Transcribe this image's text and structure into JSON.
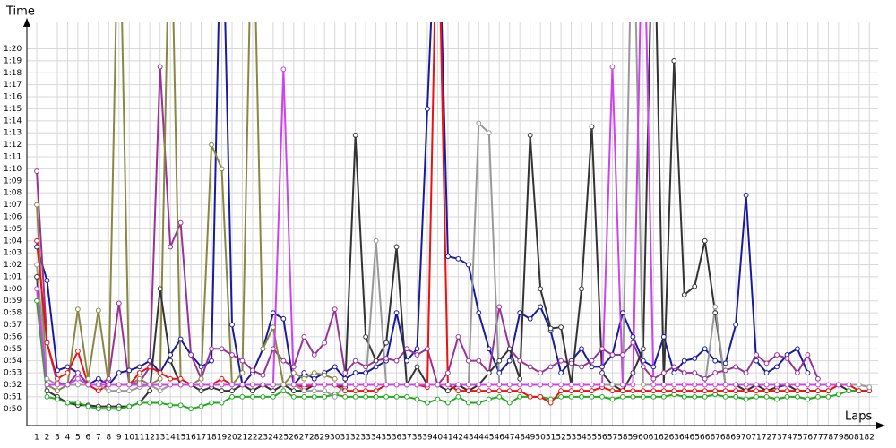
{
  "chart_data": {
    "type": "line",
    "y_label": "Time",
    "x_label": "Laps",
    "x": [
      1,
      2,
      3,
      4,
      5,
      6,
      7,
      8,
      9,
      10,
      11,
      12,
      13,
      14,
      15,
      16,
      17,
      18,
      19,
      20,
      21,
      22,
      23,
      24,
      25,
      26,
      27,
      28,
      29,
      30,
      31,
      32,
      33,
      34,
      35,
      36,
      37,
      38,
      39,
      40,
      41,
      42,
      43,
      44,
      45,
      46,
      47,
      48,
      49,
      50,
      51,
      52,
      53,
      54,
      55,
      56,
      57,
      58,
      59,
      60,
      61,
      62,
      63,
      64,
      65,
      66,
      67,
      68,
      69,
      70,
      71,
      72,
      73,
      74,
      75,
      76,
      77,
      78,
      79,
      80,
      81,
      82
    ],
    "xlim": [
      0.04,
      82.5
    ],
    "xticks": [
      1,
      2,
      3,
      4,
      5,
      6,
      7,
      8,
      9,
      10,
      11,
      12,
      13,
      14,
      15,
      16,
      17,
      18,
      19,
      20,
      21,
      22,
      23,
      24,
      25,
      26,
      27,
      28,
      29,
      30,
      31,
      32,
      33,
      34,
      35,
      36,
      37,
      38,
      39,
      40,
      41,
      42,
      43,
      44,
      45,
      46,
      47,
      48,
      49,
      50,
      51,
      52,
      53,
      54,
      55,
      56,
      57,
      58,
      59,
      60,
      61,
      62,
      63,
      64,
      65,
      66,
      67,
      68,
      69,
      70,
      71,
      72,
      73,
      74,
      75,
      76,
      77,
      78,
      79,
      80,
      81,
      82
    ],
    "ylim": [
      48.6,
      82.2
    ],
    "yticks": [
      {
        "value": 50,
        "label": "0:50"
      },
      {
        "value": 51,
        "label": "0:51"
      },
      {
        "value": 52,
        "label": "0:52"
      },
      {
        "value": 53,
        "label": "0:53"
      },
      {
        "value": 54,
        "label": "0:54"
      },
      {
        "value": 55,
        "label": "0:55"
      },
      {
        "value": 56,
        "label": "0:56"
      },
      {
        "value": 57,
        "label": "0:57"
      },
      {
        "value": 58,
        "label": "0:58"
      },
      {
        "value": 59,
        "label": "0:59"
      },
      {
        "value": 60,
        "label": "1:00"
      },
      {
        "value": 61,
        "label": "1:01"
      },
      {
        "value": 62,
        "label": "1:02"
      },
      {
        "value": 63,
        "label": "1:03"
      },
      {
        "value": 64,
        "label": "1:04"
      },
      {
        "value": 65,
        "label": "1:05"
      },
      {
        "value": 66,
        "label": "1:06"
      },
      {
        "value": 67,
        "label": "1:07"
      },
      {
        "value": 68,
        "label": "1:08"
      },
      {
        "value": 69,
        "label": "1:09"
      },
      {
        "value": 70,
        "label": "1:10"
      },
      {
        "value": 71,
        "label": "1:11"
      },
      {
        "value": 72,
        "label": "1:12"
      },
      {
        "value": 73,
        "label": "1:13"
      },
      {
        "value": 74,
        "label": "1:14"
      },
      {
        "value": 75,
        "label": "1:15"
      },
      {
        "value": 76,
        "label": "1:16"
      },
      {
        "value": 77,
        "label": "1:17"
      },
      {
        "value": 78,
        "label": "1:18"
      },
      {
        "value": 79,
        "label": "1:19"
      },
      {
        "value": 80,
        "label": "1:20"
      }
    ],
    "grid": true,
    "series": [
      {
        "color": "#1a1aa0",
        "values": [
          63.5,
          60.7,
          53.2,
          53.5,
          53,
          52,
          52.5,
          52,
          53,
          53.2,
          53.5,
          54,
          53,
          54.5,
          55.8,
          54.5,
          53.5,
          54,
          95,
          57,
          52,
          53,
          55,
          58,
          57.5,
          52,
          53,
          52.5,
          53,
          53.5,
          52.5,
          53,
          53,
          53.5,
          54,
          58,
          54,
          55,
          75,
          95,
          62.7,
          62.5,
          62,
          58,
          55,
          53,
          54,
          58,
          57.5,
          58.5,
          56.5,
          53,
          54,
          55,
          53.5,
          53.5,
          54.5,
          58,
          56,
          54,
          53.5,
          56,
          53,
          54,
          54.2,
          55,
          54,
          53.8,
          57,
          67.8,
          54,
          53,
          53.5,
          54.5,
          55,
          53,
          null,
          null,
          null,
          null,
          null,
          null
        ]
      },
      {
        "color": "#993399",
        "values": [
          69.8,
          55.5,
          52.2,
          52,
          53,
          52,
          52,
          52.5,
          58.8,
          52,
          52.2,
          53.5,
          78.5,
          63.5,
          65.5,
          54.5,
          52.5,
          55,
          55,
          54.5,
          54,
          53.2,
          52.8,
          55,
          54,
          53.5,
          56,
          54.5,
          55.5,
          58.3,
          53,
          54,
          53.5,
          54,
          54.2,
          54,
          55,
          54.5,
          55,
          52,
          53,
          56,
          54,
          54,
          53,
          58.5,
          55,
          54,
          53.5,
          53,
          53.5,
          54,
          53.8,
          53.5,
          54,
          55,
          54.5,
          54.5,
          55.5,
          53.5,
          52.5,
          53,
          53.5,
          53,
          53,
          52.5,
          53,
          53.2,
          53.5,
          53,
          54.5,
          53.8,
          54.5,
          54.2,
          53,
          54.5,
          52.5,
          null,
          null,
          null,
          null,
          null
        ]
      },
      {
        "color": "#888844",
        "values": [
          67,
          52,
          51.5,
          52,
          58.3,
          52.5,
          58.2,
          52,
          95,
          52,
          52.5,
          52,
          52.5,
          95,
          52.5,
          52,
          52.5,
          72,
          70,
          52,
          53,
          95,
          55,
          56.8,
          52,
          53,
          52.5,
          53,
          52.8,
          52.5,
          null,
          null,
          null,
          null,
          null,
          null,
          null,
          null,
          null,
          null,
          null,
          null,
          null,
          null,
          null,
          null,
          null,
          null,
          null,
          null,
          null,
          null,
          null,
          null,
          null,
          null,
          null,
          null,
          null,
          null,
          null,
          null,
          null,
          null,
          null,
          null,
          null,
          null,
          null,
          null,
          null,
          null,
          null,
          null,
          null,
          null,
          null,
          null,
          null,
          null,
          null,
          null
        ]
      },
      {
        "color": "#333333",
        "values": [
          61,
          51.5,
          51,
          50.5,
          50.3,
          50.3,
          50.2,
          50.2,
          50.2,
          50.2,
          50.5,
          51.5,
          60,
          54,
          52,
          52,
          51.5,
          51.8,
          51.5,
          51.5,
          52,
          51.5,
          52,
          51.5,
          52,
          51.5,
          51.5,
          52,
          52,
          52,
          51.8,
          72.8,
          56,
          54,
          55.5,
          63.5,
          52,
          53.5,
          52,
          52,
          51.5,
          52,
          51.5,
          52,
          53,
          54,
          55,
          52.5,
          72.8,
          60,
          56.7,
          56.8,
          52,
          60,
          73.5,
          53,
          52,
          51.5,
          53,
          55,
          95,
          52,
          79,
          59.5,
          60.2,
          64,
          58,
          52,
          52,
          51.5,
          52,
          51.5,
          51.8,
          52,
          51.5,
          51.5,
          51.5,
          51.5,
          52,
          51.5,
          51.5,
          51.5
        ]
      },
      {
        "color": "#22aa22",
        "values": [
          59,
          51,
          50.8,
          50.5,
          50.5,
          50.2,
          50,
          50,
          50,
          50.2,
          50.5,
          50.5,
          50.5,
          50.3,
          50.3,
          50,
          50.2,
          50.5,
          50.5,
          51,
          51,
          51,
          51,
          51,
          51.5,
          51,
          51,
          51,
          51,
          51.2,
          51,
          51,
          51,
          51,
          51,
          51,
          51,
          50.8,
          50.5,
          50.8,
          50.5,
          51,
          50.5,
          50.5,
          50.8,
          51,
          50.5,
          51,
          51,
          51,
          50.8,
          51,
          51,
          51,
          51,
          51,
          50.8,
          51,
          51,
          51,
          51,
          51,
          51.2,
          51,
          51,
          51,
          51.2,
          51,
          51,
          50.8,
          51,
          51,
          50.8,
          51,
          51,
          50.8,
          51,
          51,
          51.2,
          51.5,
          51.5,
          51.5
        ]
      },
      {
        "color": "#ee1111",
        "values": [
          64,
          55.5,
          52.5,
          53,
          54.8,
          52,
          51.5,
          52,
          52,
          52,
          53,
          53.5,
          53,
          52.5,
          52.5,
          52,
          52,
          52,
          52.5,
          52,
          52,
          52,
          52,
          52,
          52,
          52,
          51.8,
          52,
          52,
          52,
          51.5,
          51.5,
          51.5,
          51.5,
          52,
          52,
          52,
          52,
          51.8,
          95,
          52,
          51.5,
          51.5,
          51.5,
          51.5,
          51.5,
          51.5,
          51.5,
          51,
          51,
          50.5,
          51.5,
          51.5,
          51.5,
          51.5,
          51.8,
          51.5,
          51.5,
          51.5,
          51.5,
          51.5,
          51.5,
          51.5,
          51.5,
          51.5,
          51.5,
          51.5,
          51.5,
          51.5,
          51.5,
          51.5,
          51.5,
          51.5,
          51.5,
          51.5,
          51.5,
          51.5,
          51.5,
          52,
          52,
          51.5,
          51.5
        ]
      },
      {
        "color": "#999999",
        "values": [
          62,
          52.5,
          52,
          52,
          52,
          52,
          52,
          51.5,
          51.5,
          51.5,
          51.8,
          52,
          51.5,
          52,
          52,
          52,
          52,
          52,
          52,
          52,
          52,
          52,
          52,
          52,
          52,
          52,
          51.5,
          51.5,
          51.5,
          51,
          52,
          52,
          52,
          64,
          52,
          52,
          52,
          52,
          52,
          52,
          52,
          52,
          52,
          73.8,
          73,
          52,
          52,
          52,
          52,
          52,
          52,
          52,
          52,
          52,
          52,
          52,
          52,
          52,
          95,
          52,
          52,
          52,
          52,
          52,
          52,
          52,
          58.5,
          52,
          52,
          52,
          52,
          52,
          52,
          52,
          52,
          52,
          52,
          52,
          52,
          52,
          52,
          51.8
        ]
      },
      {
        "color": "#cc44ee",
        "values": [
          60,
          52,
          52,
          52,
          52.5,
          52,
          52,
          52,
          52,
          52,
          52,
          52,
          52,
          52,
          52,
          52,
          52,
          52,
          52,
          52,
          52,
          52,
          52,
          52,
          78.3,
          52,
          52,
          52,
          52,
          52,
          52,
          52,
          52,
          52,
          52,
          52,
          52,
          52,
          52,
          52,
          52,
          52,
          52,
          52,
          52,
          52,
          52,
          52,
          52,
          52,
          52,
          52,
          52,
          52,
          52,
          52,
          78.5,
          52,
          52,
          95,
          52,
          52,
          52,
          52,
          52,
          52,
          52,
          52,
          52,
          52,
          52,
          52,
          52,
          52,
          52,
          52,
          52,
          52,
          52,
          52,
          null,
          null
        ]
      }
    ]
  }
}
